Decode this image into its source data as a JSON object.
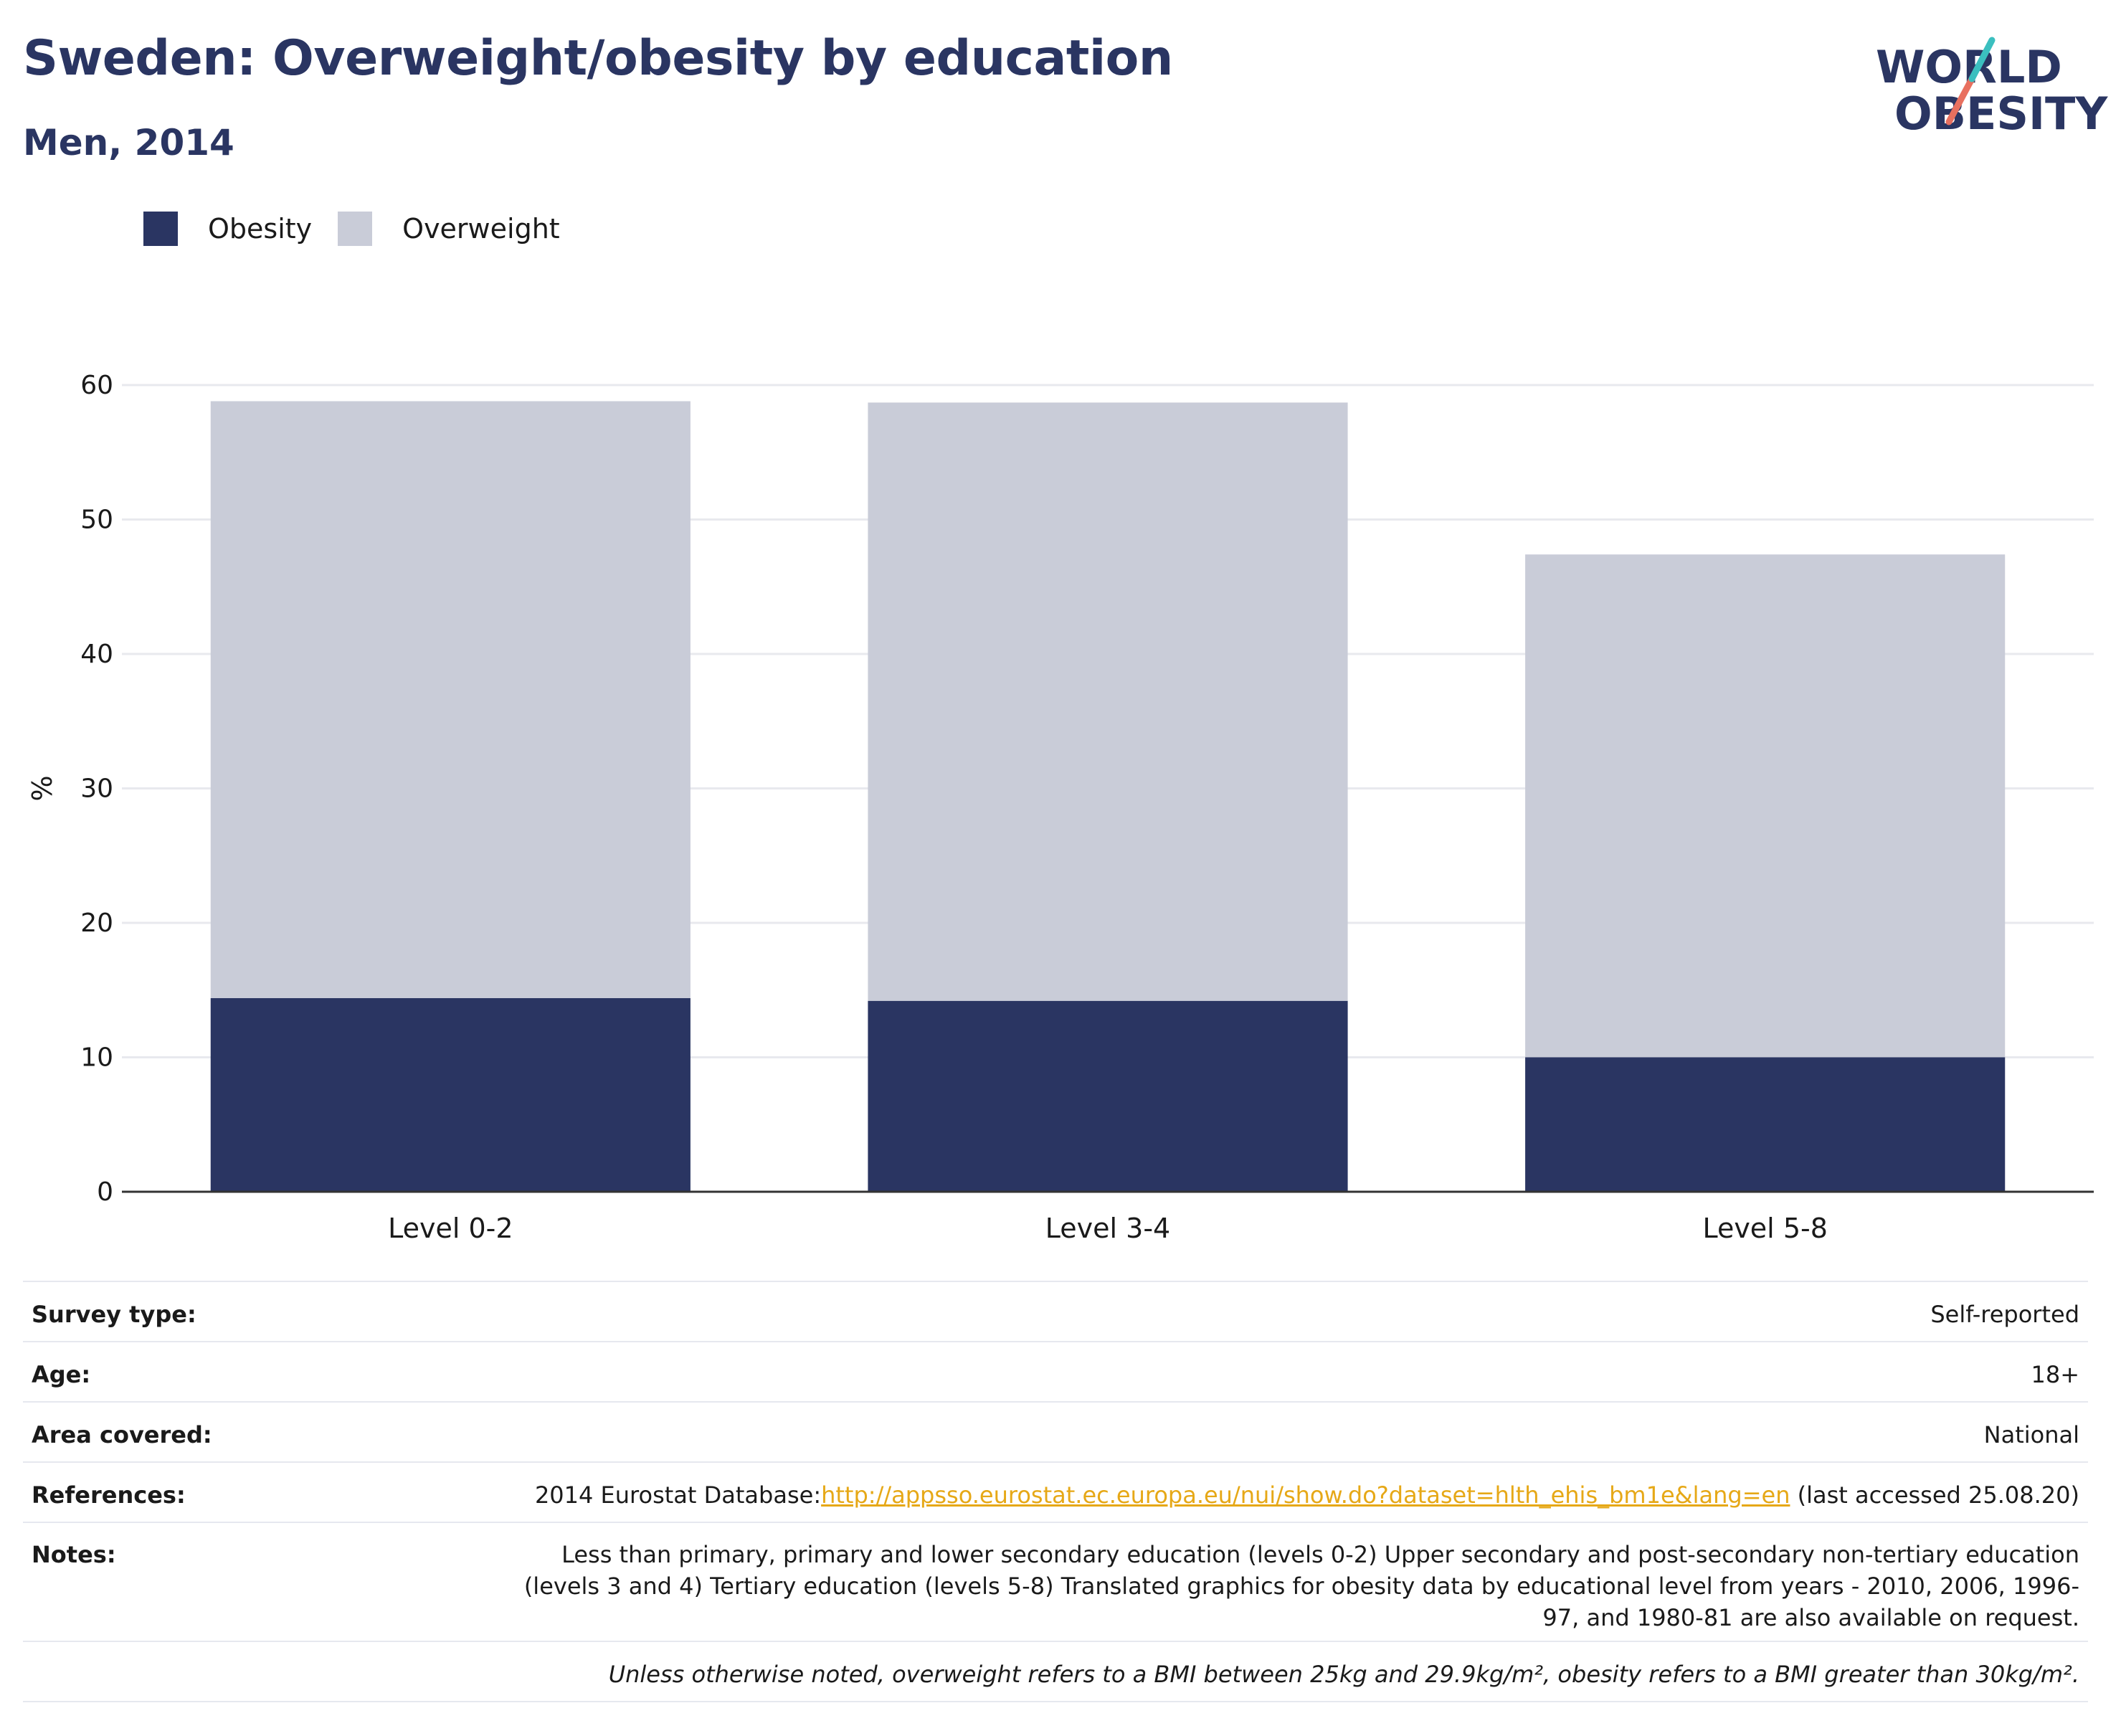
{
  "header": {
    "title": "Sweden: Overweight/obesity by education",
    "subtitle": "Men, 2014"
  },
  "logo": {
    "line1": "WORLD",
    "line2": "OBESITY",
    "accent_teal": "#3bbfbf",
    "accent_coral": "#e8705f"
  },
  "legend": {
    "obesity_label": "Obesity",
    "overweight_label": "Overweight"
  },
  "colors": {
    "obesity": "#2a3562",
    "overweight": "#c9ccd8",
    "grid": "#e8e9ee",
    "axis": "#333333",
    "link": "#e6a817"
  },
  "chart_data": {
    "type": "bar",
    "stacked": true,
    "categories": [
      "Level 0-2",
      "Level 3-4",
      "Level 5-8"
    ],
    "series": [
      {
        "name": "Obesity",
        "values": [
          14.4,
          14.2,
          10.0
        ]
      },
      {
        "name": "Overweight",
        "values": [
          44.4,
          44.5,
          37.4
        ]
      }
    ],
    "ylabel": "%",
    "ylim": [
      0,
      60
    ],
    "yticks": [
      0,
      10,
      20,
      30,
      40,
      50,
      60
    ],
    "grid": true,
    "legend_position": "top-left"
  },
  "meta": {
    "survey_type_label": "Survey type:",
    "survey_type_value": "Self-reported",
    "age_label": "Age:",
    "age_value": "18+",
    "area_label": "Area covered:",
    "area_value": "National",
    "references_label": "References:",
    "references_prefix": "2014 Eurostat Database:",
    "references_link": "http://appsso.eurostat.ec.europa.eu/nui/show.do?dataset=hlth_ehis_bm1e&lang=en",
    "references_suffix": " (last accessed 25.08.20)",
    "notes_label": "Notes:",
    "notes_value": "Less than primary, primary and lower secondary education (levels 0-2) Upper secondary and post-secondary non-tertiary education (levels 3 and 4) Tertiary education (levels 5-8) Translated graphics for obesity data by educational level from years - 2010, 2006, 1996-97, and 1980-81 are also available on request.",
    "footnote": "Unless otherwise noted, overweight refers to a BMI between 25kg and 29.9kg/m², obesity refers to a BMI greater than 30kg/m²."
  }
}
